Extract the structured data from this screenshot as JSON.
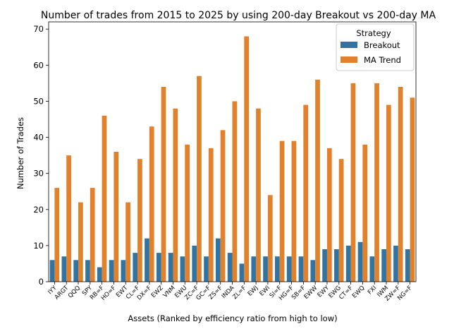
{
  "chart_data": {
    "type": "bar",
    "title": "Number of trades from 2015 to 2025 by using 200-day Breakout vs 200-day MA",
    "xlabel": "Assets (Ranked by efficiency ratio from high to low)",
    "ylabel": "Number of Trades",
    "ylim": [
      0,
      72
    ],
    "yticks": [
      0,
      10,
      20,
      30,
      40,
      50,
      60,
      70
    ],
    "grid": false,
    "legend": {
      "title": "Strategy",
      "placement": "top-right"
    },
    "categories": [
      "IYY",
      "ARGT",
      "QQQ",
      "SPY",
      "RB=F",
      "HO=F",
      "EWT",
      "CL=F",
      "DX=F",
      "EWZ",
      "VNM",
      "EWU",
      "ZC=F",
      "GC=F",
      "ZS=F",
      "INDA",
      "ZL=F",
      "EWJ",
      "EWI",
      "SI=F",
      "HG=F",
      "SB=F",
      "EWW",
      "EWY",
      "EWG",
      "CT=F",
      "EWQ",
      "FXI",
      "IWM",
      "ZW=F",
      "NG=F"
    ],
    "series": [
      {
        "name": "Breakout",
        "color": "#3274a1",
        "values": [
          6,
          7,
          6,
          6,
          4,
          6,
          6,
          8,
          12,
          8,
          8,
          7,
          10,
          7,
          12,
          8,
          5,
          7,
          7,
          7,
          7,
          7,
          6,
          9,
          9,
          10,
          11,
          7,
          9,
          10,
          9
        ]
      },
      {
        "name": "MA Trend",
        "color": "#e1812c",
        "values": [
          26,
          35,
          22,
          26,
          46,
          36,
          22,
          34,
          43,
          54,
          48,
          38,
          57,
          37,
          42,
          50,
          68,
          48,
          24,
          39,
          39,
          49,
          56,
          37,
          34,
          55,
          38,
          55,
          49,
          54,
          51
        ]
      }
    ]
  }
}
